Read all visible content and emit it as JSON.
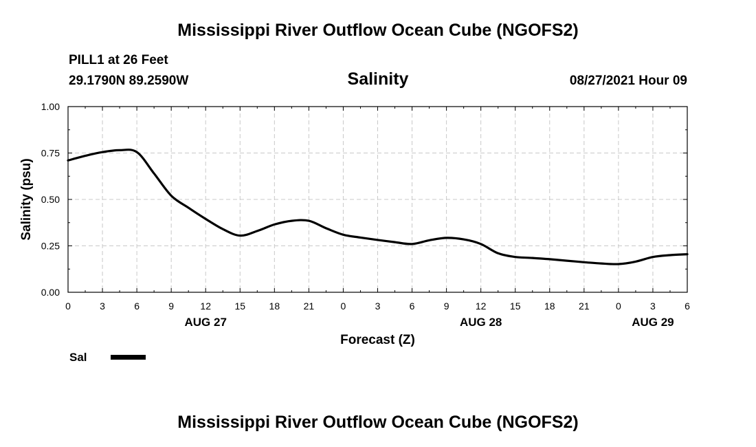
{
  "header": {
    "title": "Mississippi River Outflow Ocean Cube (NGOFS2)",
    "station_line": "PILL1 at 26 Feet",
    "coords_line": "29.1790N  89.2590W",
    "variable": "Salinity",
    "datetime": "08/27/2021 Hour 09"
  },
  "footer": {
    "title": "Mississippi River Outflow Ocean Cube (NGOFS2)"
  },
  "legend": {
    "label": "Sal"
  },
  "chart_data": {
    "type": "line",
    "title": "Salinity",
    "xlabel": "Forecast (Z)",
    "ylabel": "Salinity (psu)",
    "xlim": [
      0,
      54
    ],
    "ylim": [
      0,
      1.0
    ],
    "grid": true,
    "x_ticks": [
      0,
      3,
      6,
      9,
      12,
      15,
      18,
      21,
      24,
      27,
      30,
      33,
      36,
      39,
      42,
      45,
      48,
      51,
      54
    ],
    "x_tick_labels": [
      "0",
      "3",
      "6",
      "9",
      "12",
      "15",
      "18",
      "21",
      "0",
      "3",
      "6",
      "9",
      "12",
      "15",
      "18",
      "21",
      "0",
      "3",
      "6"
    ],
    "y_ticks": [
      0,
      0.25,
      0.5,
      0.75,
      1.0
    ],
    "y_tick_labels": [
      "0.00",
      "0.25",
      "0.50",
      "0.75",
      "1.00"
    ],
    "date_labels": [
      {
        "x": 12,
        "label": "AUG 27"
      },
      {
        "x": 36,
        "label": "AUG 28"
      },
      {
        "x": 51,
        "label": "AUG 29"
      }
    ],
    "series": [
      {
        "name": "Sal",
        "color": "#000000",
        "x": [
          0,
          1.5,
          3,
          4.5,
          6,
          7.5,
          9,
          10.5,
          12,
          13.5,
          15,
          16.5,
          18,
          19.5,
          21,
          22.5,
          24,
          25.5,
          27,
          28.5,
          30,
          31.5,
          33,
          34.5,
          36,
          37.5,
          39,
          40.5,
          42,
          43.5,
          45,
          46.5,
          48,
          49.5,
          51,
          52.5,
          54
        ],
        "values": [
          0.71,
          0.735,
          0.755,
          0.765,
          0.755,
          0.64,
          0.52,
          0.455,
          0.395,
          0.34,
          0.305,
          0.33,
          0.365,
          0.385,
          0.385,
          0.345,
          0.31,
          0.295,
          0.282,
          0.27,
          0.26,
          0.28,
          0.293,
          0.285,
          0.26,
          0.21,
          0.19,
          0.185,
          0.178,
          0.17,
          0.162,
          0.155,
          0.152,
          0.165,
          0.19,
          0.2,
          0.205
        ]
      }
    ]
  }
}
